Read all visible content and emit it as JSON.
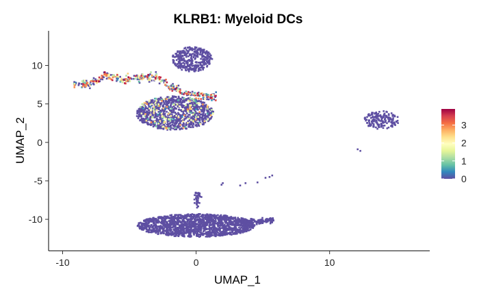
{
  "chart_data": {
    "type": "scatter",
    "title": "KLRB1: Myeloid DCs",
    "xlabel": "UMAP_1",
    "ylabel": "UMAP_2",
    "xlim": [
      -11,
      17.5
    ],
    "ylim": [
      -14,
      14.5
    ],
    "xticks": [
      -10,
      0,
      10
    ],
    "xtick_labels": [
      "-10",
      "0",
      "10"
    ],
    "yticks": [
      -10,
      -5,
      0,
      5,
      10
    ],
    "ytick_labels": [
      "-10",
      "-5",
      "0",
      "5",
      "10"
    ],
    "grid": false,
    "legend": {
      "position": "right",
      "type": "colorbar",
      "range": [
        0,
        3.9
      ],
      "ticks": [
        0,
        1,
        2,
        3
      ],
      "tick_labels": [
        "0",
        "1",
        "2",
        "3"
      ],
      "palette": [
        "#5E4FA2",
        "#3288BD",
        "#66C2A5",
        "#ABDDA4",
        "#E6F598",
        "#FFFFBF",
        "#FEE08B",
        "#FDAE61",
        "#F46D43",
        "#D53E4F",
        "#9E0142"
      ]
    },
    "base_color": "#5E4FA2",
    "clusters": [
      {
        "name": "top-blob",
        "cx": -0.3,
        "cy": 10.8,
        "rx": 1.5,
        "ry": 1.6,
        "n": 380,
        "expr_frac": 0.0,
        "expr_max": 0
      },
      {
        "name": "upper-left-streak",
        "x_range": [
          -9.2,
          1.5
        ],
        "y_path": [
          [
            -9.2,
            7.6
          ],
          [
            -8,
            7.5
          ],
          [
            -6.8,
            8.8
          ],
          [
            -5.5,
            8.2
          ],
          [
            -4,
            8.4
          ],
          [
            -3,
            8.6
          ],
          [
            -2,
            7.3
          ],
          [
            -1,
            6.5
          ],
          [
            0.5,
            6.0
          ],
          [
            1.5,
            6.0
          ]
        ],
        "thickness": 0.5,
        "n": 380,
        "expr_frac": 0.55,
        "expr_max": 3.9
      },
      {
        "name": "central-mass",
        "cx": -1.6,
        "cy": 3.8,
        "rx": 2.9,
        "ry": 2.2,
        "n": 1100,
        "expr_frac": 0.12,
        "expr_max": 3.0
      },
      {
        "name": "right-small",
        "cx": 13.9,
        "cy": 2.9,
        "rx": 1.3,
        "ry": 1.2,
        "n": 170,
        "expr_frac": 0.0,
        "expr_max": 0
      },
      {
        "name": "right-dots",
        "points": [
          [
            12.1,
            -0.9
          ],
          [
            12.3,
            -1.1
          ],
          [
            5.7,
            -4.3
          ],
          [
            5.5,
            -4.5
          ],
          [
            5.2,
            -4.6
          ],
          [
            4.6,
            -5.2
          ],
          [
            3.7,
            -5.3
          ],
          [
            3.3,
            -5.6
          ],
          [
            2.0,
            -5.3
          ],
          [
            1.9,
            -5.5
          ]
        ],
        "expr_frac": 0.0,
        "expr_max": 0
      },
      {
        "name": "bottom-mass",
        "cx": 0.0,
        "cy": -10.8,
        "rx": 4.4,
        "ry": 1.5,
        "n": 1650,
        "expr_frac": 0.0,
        "expr_max": 0
      },
      {
        "name": "bottom-tail",
        "x_range": [
          3.5,
          5.8
        ],
        "y_path": [
          [
            3.5,
            -10.4
          ],
          [
            5.8,
            -10.1
          ]
        ],
        "thickness": 0.35,
        "n": 130,
        "expr_frac": 0.0,
        "expr_max": 0
      },
      {
        "name": "bottom-spur",
        "x_range": [
          -0.1,
          0.3
        ],
        "y_path": [
          [
            0.1,
            -6.5
          ],
          [
            0.0,
            -8.5
          ]
        ],
        "thickness": 0.25,
        "n": 40,
        "expr_frac": 0.0,
        "expr_max": 0
      }
    ]
  }
}
